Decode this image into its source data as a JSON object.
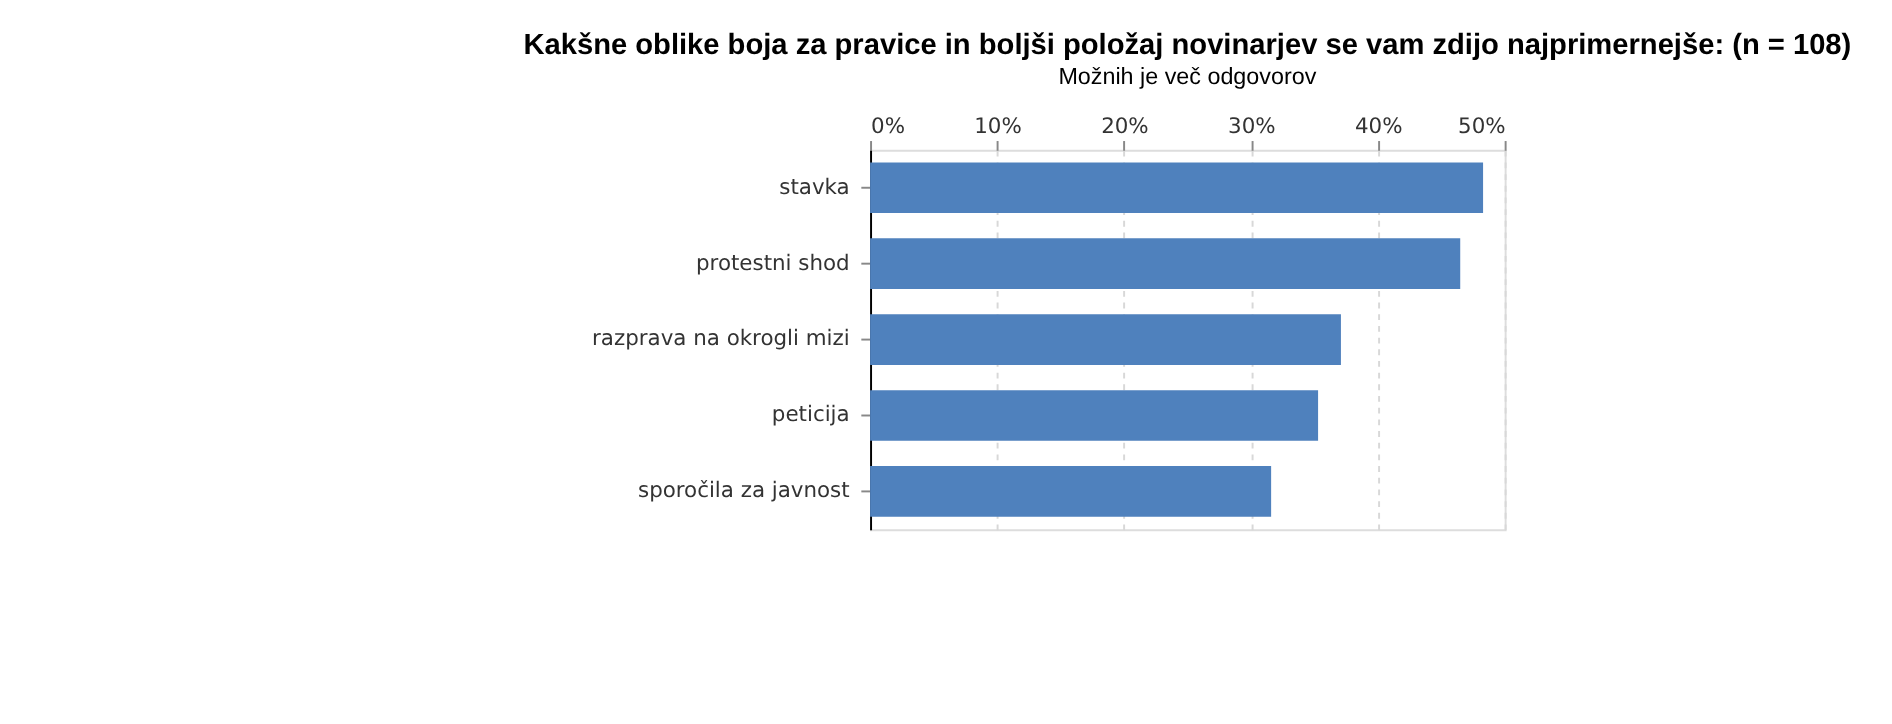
{
  "chart_data": {
    "type": "bar",
    "orientation": "horizontal",
    "title": "Kakšne oblike boja za pravice in boljši položaj novinarjev se vam zdijo najprimernejše: (n = 108)",
    "subtitle": "Možnih je več odgovorov",
    "categories": [
      "stavka",
      "protestni shod",
      "razprava na okrogli mizi",
      "peticija",
      "sporočila za javnost"
    ],
    "values": [
      48.3,
      46.5,
      37.1,
      35.3,
      31.6
    ],
    "color": "#4f81bd",
    "xlim": [
      0,
      50
    ],
    "xticks": [
      {
        "value": 0,
        "label": "0%"
      },
      {
        "value": 10,
        "label": "10%"
      },
      {
        "value": 20,
        "label": "20%"
      },
      {
        "value": 30,
        "label": "30%"
      },
      {
        "value": 40,
        "label": "40%"
      },
      {
        "value": 50,
        "label": "50%"
      }
    ],
    "grid": "x"
  }
}
